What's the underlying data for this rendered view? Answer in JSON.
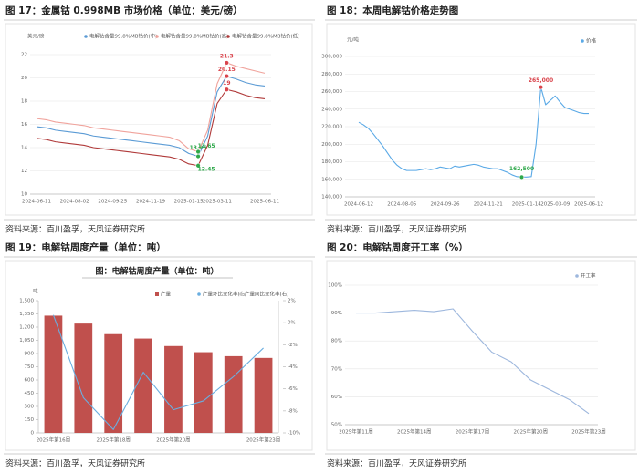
{
  "figures": [
    {
      "caption": "图 17：金属钴 0.998MB 市场价格（单位：美元/磅）",
      "source": "资料来源：百川盈孚，天风证券研究所"
    },
    {
      "caption": "图 18：本周电解钴价格走势图",
      "source": "资料来源：百川盈孚，天风证券研究所"
    },
    {
      "caption": "图 19：电解钴周度产量（单位：吨）",
      "source": "资料来源：百川盈孚，天风证券研究所"
    },
    {
      "caption": "图 20：电解钴周度开工率（%）",
      "source": "资料来源：百川盈孚，天风证券研究所"
    }
  ],
  "chart_data": [
    {
      "type": "line",
      "y_label": "美元/磅",
      "categories": [
        "2024-06-11",
        null,
        null,
        null,
        "2024-08-02",
        null,
        null,
        null,
        "2024-09-25",
        null,
        null,
        null,
        "2024-11-19",
        null,
        null,
        null,
        "2025-01-15",
        null,
        null,
        "2025-03-11",
        null,
        null,
        null,
        null,
        "2025-06-11"
      ],
      "series": [
        {
          "name": "电解钴含量99.8%MB钴价(中)",
          "color": "#5b9bd5",
          "values": [
            15.8,
            15.7,
            15.5,
            15.4,
            15.3,
            15.2,
            15.0,
            14.9,
            14.8,
            14.7,
            14.6,
            14.5,
            14.4,
            14.3,
            14.2,
            14.0,
            13.5,
            13.25,
            15.0,
            18.8,
            20.15,
            19.9,
            19.6,
            19.4,
            19.3
          ]
        },
        {
          "name": "电解钴含量99.8%MB钴价(高)",
          "color": "#f0a39c",
          "values": [
            16.5,
            16.4,
            16.2,
            16.1,
            16.0,
            15.9,
            15.7,
            15.6,
            15.5,
            15.4,
            15.3,
            15.2,
            15.1,
            15.0,
            14.9,
            14.6,
            13.9,
            13.65,
            15.5,
            19.5,
            21.3,
            21.0,
            20.8,
            20.6,
            20.4
          ]
        },
        {
          "name": "电解钴含量99.8%MB钴价(低)",
          "color": "#b03a3a",
          "values": [
            14.8,
            14.7,
            14.5,
            14.4,
            14.3,
            14.2,
            14.0,
            13.9,
            13.8,
            13.7,
            13.6,
            13.5,
            13.4,
            13.3,
            13.2,
            13.0,
            12.6,
            12.45,
            14.2,
            17.8,
            19.0,
            18.8,
            18.5,
            18.3,
            18.2
          ]
        }
      ],
      "labeled_points": [
        17,
        20
      ],
      "label_colors": [
        "#2ea84a",
        "#d9434b"
      ],
      "ylim": [
        10,
        22
      ],
      "yticks": [
        10,
        12,
        14,
        16,
        18,
        20,
        22
      ],
      "grid": true
    },
    {
      "type": "line",
      "y_label": "元/吨",
      "categories": [
        "2024-06-12",
        null,
        null,
        null,
        null,
        null,
        null,
        null,
        null,
        "2024-08-05",
        null,
        null,
        null,
        null,
        null,
        null,
        null,
        null,
        "2024-09-26",
        null,
        null,
        null,
        null,
        null,
        null,
        null,
        null,
        "2024-11-21",
        null,
        null,
        null,
        null,
        null,
        null,
        null,
        "2025-01-14",
        null,
        null,
        null,
        null,
        null,
        "2025-03-09",
        null,
        null,
        null,
        null,
        null,
        null,
        "2025-06-12"
      ],
      "series": [
        {
          "name": "价格",
          "color": "#5aa9e6",
          "values": [
            225000,
            222000,
            218000,
            212000,
            205000,
            198000,
            190000,
            182000,
            176000,
            172000,
            170000,
            170000,
            170000,
            171000,
            172000,
            171000,
            172000,
            174000,
            173000,
            172000,
            175000,
            174000,
            175000,
            176000,
            177000,
            176000,
            174000,
            173000,
            172000,
            172000,
            170000,
            168000,
            165000,
            163000,
            162500,
            162500,
            163000,
            200000,
            265000,
            245000,
            250000,
            255000,
            248000,
            242000,
            240000,
            238000,
            236000,
            235000,
            235000
          ],
          "value_labels": [
            null,
            null,
            null,
            null,
            null,
            null,
            null,
            null,
            null,
            null,
            null,
            null,
            null,
            null,
            null,
            null,
            null,
            null,
            null,
            null,
            null,
            null,
            null,
            null,
            null,
            null,
            null,
            null,
            null,
            null,
            null,
            null,
            null,
            null,
            "162,500",
            null,
            null,
            null,
            "265,000",
            null,
            null,
            null,
            null,
            null,
            null,
            null,
            null,
            null,
            null
          ]
        }
      ],
      "label_colors": [
        "#2ea84a",
        "#d9434b"
      ],
      "ylim": [
        140000,
        300000
      ],
      "yticks": [
        {
          "value": 140000,
          "label": "140,000"
        },
        {
          "value": 160000,
          "label": "160,000"
        },
        {
          "value": 180000,
          "label": "180,000"
        },
        {
          "value": 200000,
          "label": "200,000"
        },
        {
          "value": 220000,
          "label": "220,000"
        },
        {
          "value": 240000,
          "label": "240,000"
        },
        {
          "value": 260000,
          "label": "260,000"
        },
        {
          "value": 280000,
          "label": "280,000"
        },
        {
          "value": 300000,
          "label": "300,000"
        }
      ],
      "grid": true
    },
    {
      "type": "bar_line",
      "title": "图：电解钴周度产量（单位：吨）",
      "y_label": "吨",
      "categories": [
        "2025年第16周",
        null,
        "2025年第18周",
        null,
        "2025年第20周",
        null,
        null,
        "2025年第23周"
      ],
      "series": [
        {
          "name": "产量",
          "type": "bar",
          "color": "#c0504d",
          "values": [
            1330,
            1240,
            1120,
            1070,
            985,
            915,
            870,
            850
          ]
        },
        {
          "name": "产量环比变化率(右)",
          "type": "line",
          "axis": "y2",
          "color": "#6aaee0",
          "values": [
            0.7,
            -6.8,
            -9.7,
            -4.5,
            -7.9,
            -7.1,
            -4.9,
            -2.3
          ]
        },
        {
          "name": "产量同比变化率(右)",
          "type": "line",
          "axis": "y2",
          "color": "#c8c8c8",
          "values": [
            null,
            null,
            null,
            null,
            null,
            null,
            null,
            null
          ]
        }
      ],
      "ylim": [
        0,
        1500
      ],
      "yticks": [
        0,
        150,
        300,
        450,
        600,
        750,
        900,
        {
          "value": 1050,
          "label": "1,050"
        },
        {
          "value": 1200,
          "label": "1,200"
        },
        {
          "value": 1350,
          "label": "1,350"
        },
        {
          "value": 1500,
          "label": "1,500"
        }
      ],
      "y2lim": [
        -10,
        2
      ],
      "y2ticks": [
        {
          "value": -10,
          "label": "-10%"
        },
        {
          "value": -8,
          "label": "-8%"
        },
        {
          "value": -6,
          "label": "-6%"
        },
        {
          "value": -4,
          "label": "-4%"
        },
        {
          "value": -2,
          "label": "-2%"
        },
        {
          "value": 0,
          "label": "0%"
        },
        {
          "value": 2,
          "label": "2%"
        }
      ],
      "grid": false
    },
    {
      "type": "line",
      "categories": [
        "2025年第11周",
        null,
        null,
        "2025年第14周",
        null,
        null,
        "2025年第17周",
        null,
        null,
        "2025年第20周",
        null,
        null,
        "2025年第23周"
      ],
      "series": [
        {
          "name": "开工率",
          "color": "#9db7dd",
          "values": [
            90,
            90,
            90.5,
            91,
            90.5,
            91.5,
            83.5,
            76,
            72.5,
            66,
            62.5,
            59,
            54
          ]
        }
      ],
      "ylim": [
        50,
        100
      ],
      "yticks": [
        {
          "value": 50,
          "label": "50%"
        },
        {
          "value": 60,
          "label": "60%"
        },
        {
          "value": 70,
          "label": "70%"
        },
        {
          "value": 80,
          "label": "80%"
        },
        {
          "value": 90,
          "label": "90%"
        },
        {
          "value": 100,
          "label": "100%"
        }
      ],
      "grid": true
    }
  ]
}
